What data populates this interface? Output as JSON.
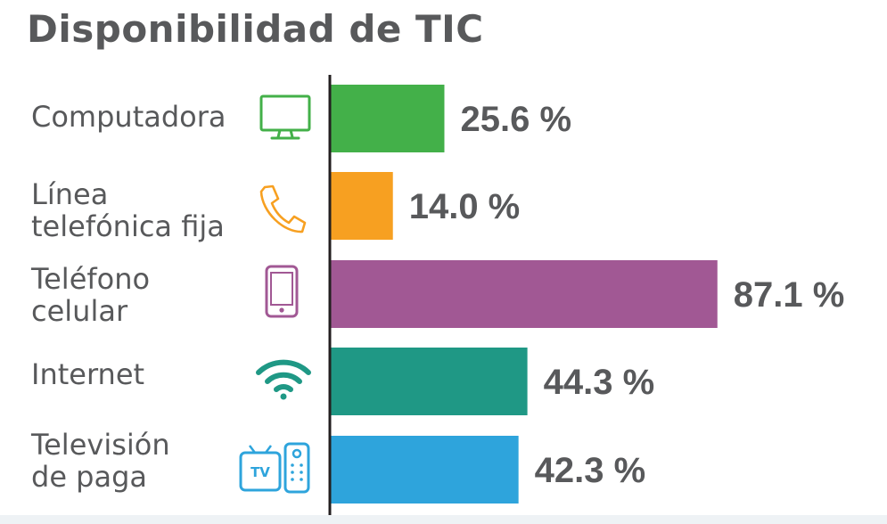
{
  "chart_data": {
    "type": "bar",
    "orientation": "horizontal",
    "title": "Disponibilidad de TIC",
    "categories": [
      "Computadora",
      "Línea telefónica fija",
      "Teléfono celular",
      "Internet",
      "Televisión de paga"
    ],
    "category_lines": [
      [
        "Computadora"
      ],
      [
        "Línea",
        "telefónica fija"
      ],
      [
        "Teléfono",
        "celular"
      ],
      [
        "Internet"
      ],
      [
        "Televisión",
        "de paga"
      ]
    ],
    "values": [
      25.6,
      14.0,
      87.1,
      44.3,
      42.3
    ],
    "value_labels": [
      "25.6 %",
      "14.0 %",
      "87.1 %",
      "44.3 %",
      "42.3 %"
    ],
    "colors": [
      "#43b049",
      "#f7a021",
      "#a15894",
      "#1f9885",
      "#2ea4dc"
    ],
    "icons": [
      "monitor-icon",
      "phone-handset-icon",
      "smartphone-icon",
      "wifi-icon",
      "tv-remote-icon"
    ],
    "icon_texts": [
      "",
      "",
      "",
      "",
      "TV"
    ],
    "unit": "%",
    "xlim": [
      0,
      100
    ],
    "xlabel": "",
    "ylabel": "",
    "grid": false
  }
}
